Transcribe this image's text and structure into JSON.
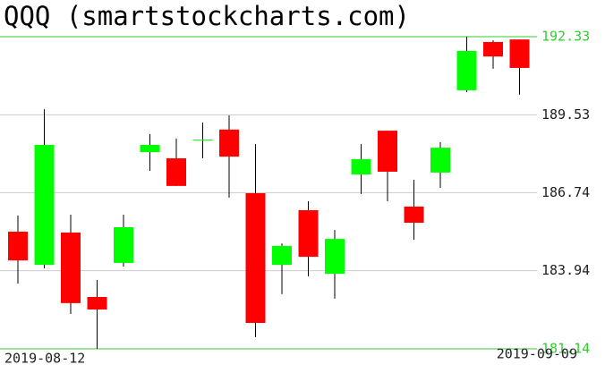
{
  "chart_data": {
    "type": "candlestick",
    "title": "QQQ (smartstockcharts.com)",
    "categories": [
      "2019-08-12",
      null,
      null,
      null,
      null,
      null,
      null,
      null,
      null,
      null,
      null,
      null,
      null,
      null,
      null,
      null,
      null,
      null,
      null,
      "2019-09-09"
    ],
    "open": [
      185.34,
      184.15,
      185.31,
      183.0,
      184.22,
      188.19,
      187.97,
      188.64,
      189.0,
      186.72,
      184.15,
      186.11,
      183.83,
      187.39,
      188.96,
      186.24,
      187.46,
      190.41,
      192.14,
      192.23
    ],
    "high": [
      185.92,
      189.73,
      185.95,
      183.61,
      185.95,
      188.84,
      188.68,
      189.25,
      189.51,
      188.48,
      184.92,
      186.43,
      185.4,
      188.48,
      188.96,
      187.2,
      188.55,
      192.33,
      192.2,
      192.23
    ],
    "low": [
      183.48,
      184.03,
      182.39,
      181.14,
      184.09,
      187.52,
      186.98,
      187.97,
      186.56,
      181.56,
      183.1,
      183.74,
      182.94,
      186.69,
      186.43,
      185.05,
      186.91,
      190.34,
      191.18,
      190.25
    ],
    "close": [
      184.31,
      188.45,
      182.78,
      182.55,
      185.5,
      188.45,
      186.98,
      188.64,
      188.03,
      182.07,
      184.83,
      184.44,
      185.08,
      187.94,
      187.49,
      185.66,
      188.35,
      191.82,
      191.62,
      191.21
    ],
    "ylim": [
      181.14,
      192.33
    ],
    "yticks": [
      181.14,
      183.94,
      186.74,
      189.53,
      192.33
    ],
    "grid": true,
    "up_color": "#00ff00",
    "down_color": "#ff0000",
    "grid_color": "#cccccc",
    "limit_color": "#33cc33"
  }
}
